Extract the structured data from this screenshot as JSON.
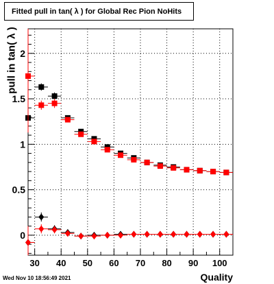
{
  "chart_data": {
    "type": "scatter",
    "title": "Fitted pull in tan( λ ) for Global Rec Pion NoHits",
    "xlabel": "Quality",
    "ylabel": "pull in tan( λ )",
    "xlim": [
      27.5,
      105
    ],
    "ylim": [
      -0.22,
      2.27
    ],
    "x_ticks": [
      30,
      35,
      40,
      45,
      50,
      55,
      60,
      65,
      70,
      75,
      80,
      85,
      90,
      95,
      100
    ],
    "x_tick_labels": [
      "30",
      "40",
      "50",
      "60",
      "70",
      "80",
      "90",
      "100"
    ],
    "y_tick_labels": [
      "0",
      "0.5",
      "1",
      "1.5",
      "2"
    ],
    "y_tick_values": [
      0,
      0.5,
      1,
      1.5,
      2
    ],
    "grid": true,
    "series": [
      {
        "marker": "square",
        "color": "#000000",
        "x": [
          27.5,
          32.5,
          37.5,
          42.5,
          47.5,
          52.5,
          57.5,
          62.5,
          67.5,
          72.5,
          77.5,
          82.5,
          87.5,
          92.5,
          97.5,
          102.5
        ],
        "y": [
          1.29,
          1.63,
          1.53,
          1.29,
          1.14,
          1.06,
          0.97,
          0.9,
          0.85,
          0.8,
          0.77,
          0.75,
          0.72,
          0.71,
          0.7,
          0.69
        ],
        "err": [
          0.0,
          0.04,
          0.04,
          0.02,
          0.02,
          0.02,
          0.02,
          0.02,
          0.02,
          0.02,
          0.02,
          0.02,
          0.02,
          0.02,
          0.02,
          0.02
        ]
      },
      {
        "marker": "square",
        "color": "#ff0000",
        "x": [
          27.5,
          32.5,
          37.5,
          42.5,
          47.5,
          52.5,
          57.5,
          62.5,
          67.5,
          72.5,
          77.5,
          82.5,
          87.5,
          92.5,
          97.5,
          102.5
        ],
        "y": [
          1.75,
          1.43,
          1.45,
          1.27,
          1.11,
          1.03,
          0.94,
          0.88,
          0.83,
          0.8,
          0.76,
          0.74,
          0.72,
          0.71,
          0.7,
          0.69
        ],
        "err": [
          0.62,
          0.05,
          0.05,
          0.03,
          0.02,
          0.02,
          0.02,
          0.02,
          0.02,
          0.02,
          0.02,
          0.02,
          0.02,
          0.02,
          0.02,
          0.02
        ]
      },
      {
        "marker": "diamond",
        "color": "#000000",
        "x": [
          27.5,
          32.5,
          37.5,
          42.5,
          47.5,
          52.5,
          57.5,
          62.5,
          67.5,
          72.5,
          77.5,
          82.5,
          87.5,
          92.5,
          97.5,
          102.5
        ],
        "y": [
          -0.08,
          0.2,
          0.07,
          0.03,
          -0.01,
          0.0,
          0.0,
          0.01,
          0.01,
          0.01,
          0.01,
          0.01,
          0.01,
          0.01,
          0.01,
          0.01
        ],
        "err": [
          0.1,
          0.05,
          0.04,
          0.02,
          0.02,
          0.02,
          0.02,
          0.02,
          0.02,
          0.02,
          0.02,
          0.02,
          0.02,
          0.02,
          0.02,
          0.02
        ]
      },
      {
        "marker": "diamond",
        "color": "#ff0000",
        "x": [
          27.5,
          32.5,
          37.5,
          42.5,
          47.5,
          52.5,
          57.5,
          62.5,
          67.5,
          72.5,
          77.5,
          82.5,
          87.5,
          92.5,
          97.5,
          102.5
        ],
        "y": [
          -0.08,
          0.07,
          0.06,
          0.02,
          -0.01,
          -0.01,
          0.0,
          0.0,
          0.01,
          0.01,
          0.01,
          0.01,
          0.01,
          0.01,
          0.01,
          0.01
        ],
        "err": [
          0.18,
          0.05,
          0.04,
          0.02,
          0.02,
          0.02,
          0.02,
          0.02,
          0.02,
          0.02,
          0.02,
          0.02,
          0.02,
          0.02,
          0.02,
          0.02
        ]
      }
    ]
  },
  "footer": {
    "timestamp": "Wed Nov 10 18:56:49 2021"
  }
}
